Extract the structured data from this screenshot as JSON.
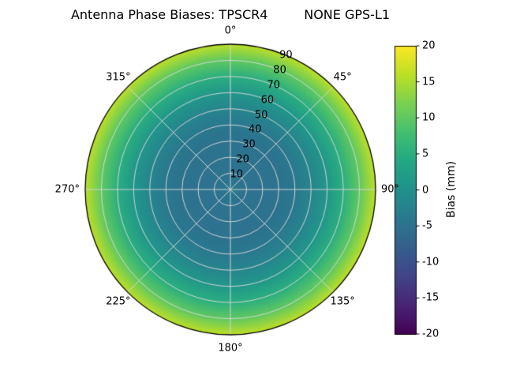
{
  "title": "Antenna Phase Biases: TPSCR4         NONE GPS-L1",
  "chart_data": {
    "type": "heatmap",
    "projection": "polar",
    "title": "Antenna Phase Biases: TPSCR4         NONE GPS-L1",
    "angular_ticks_deg": [
      0,
      45,
      90,
      135,
      180,
      225,
      270,
      315
    ],
    "angular_tick_labels": [
      "0°",
      "45°",
      "90°",
      "135°",
      "180°",
      "225°",
      "270°",
      "315°"
    ],
    "radial_ticks": [
      10,
      20,
      30,
      40,
      50,
      60,
      70,
      80,
      90
    ],
    "radial_tick_labels": [
      "10",
      "20",
      "30",
      "40",
      "50",
      "60",
      "70",
      "80",
      "90"
    ],
    "radial_axis_max": 90,
    "radial_label_angle_deg": 22.5,
    "grid": true,
    "colorbar": {
      "label": "Bias (mm)",
      "min": -20,
      "max": 20,
      "ticks": [
        20,
        15,
        10,
        5,
        0,
        -5,
        -10,
        -15,
        -20
      ],
      "tick_labels": [
        "20",
        "15",
        "10",
        "5",
        "0",
        "-5",
        "-10",
        "-15",
        "-20"
      ],
      "colormap": "viridis",
      "position": "right"
    },
    "radial_profile": {
      "description": "Bias (mm) versus zenith angle, approximately azimuth-symmetric",
      "zenith_deg": [
        0,
        10,
        20,
        30,
        40,
        50,
        60,
        70,
        80,
        90
      ],
      "bias_mm": [
        -4,
        -5,
        -5,
        -5,
        -4,
        -2,
        1,
        5,
        10,
        16
      ]
    },
    "colormap_stops": [
      "#440154",
      "#482475",
      "#414487",
      "#355f8d",
      "#2a788e",
      "#21918c",
      "#22a884",
      "#44bf70",
      "#7ad151",
      "#bddf26",
      "#fde725"
    ]
  },
  "colors": {
    "background": "#ffffff",
    "grid_line": "#d2d2d2",
    "spine": "#000000",
    "text": "#000000"
  }
}
